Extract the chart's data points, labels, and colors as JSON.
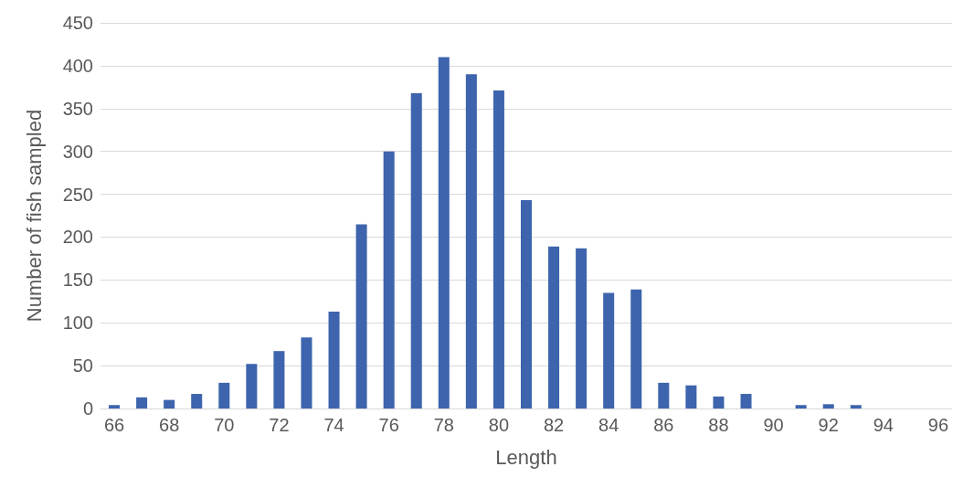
{
  "chart_data": {
    "type": "bar",
    "xlabel": "Length",
    "ylabel": "Number of fish sampled",
    "categories": [
      "66",
      null,
      "68",
      null,
      "70",
      null,
      "72",
      null,
      "74",
      null,
      "76",
      null,
      "78",
      null,
      "80",
      null,
      "82",
      null,
      "84",
      null,
      "86",
      null,
      "88",
      null,
      "90",
      null,
      "92",
      null,
      "94",
      null,
      "96"
    ],
    "values": [
      4,
      13,
      10,
      17,
      30,
      52,
      67,
      83,
      113,
      215,
      300,
      368,
      410,
      390,
      371,
      243,
      189,
      187,
      135,
      139,
      30,
      27,
      14,
      17,
      0,
      4,
      5,
      4,
      0,
      0,
      0
    ],
    "color": "#3d64ad",
    "ylim": [
      0,
      450
    ],
    "yticks": [
      0,
      50,
      100,
      150,
      200,
      250,
      300,
      350,
      400,
      450
    ],
    "grid": "y"
  }
}
